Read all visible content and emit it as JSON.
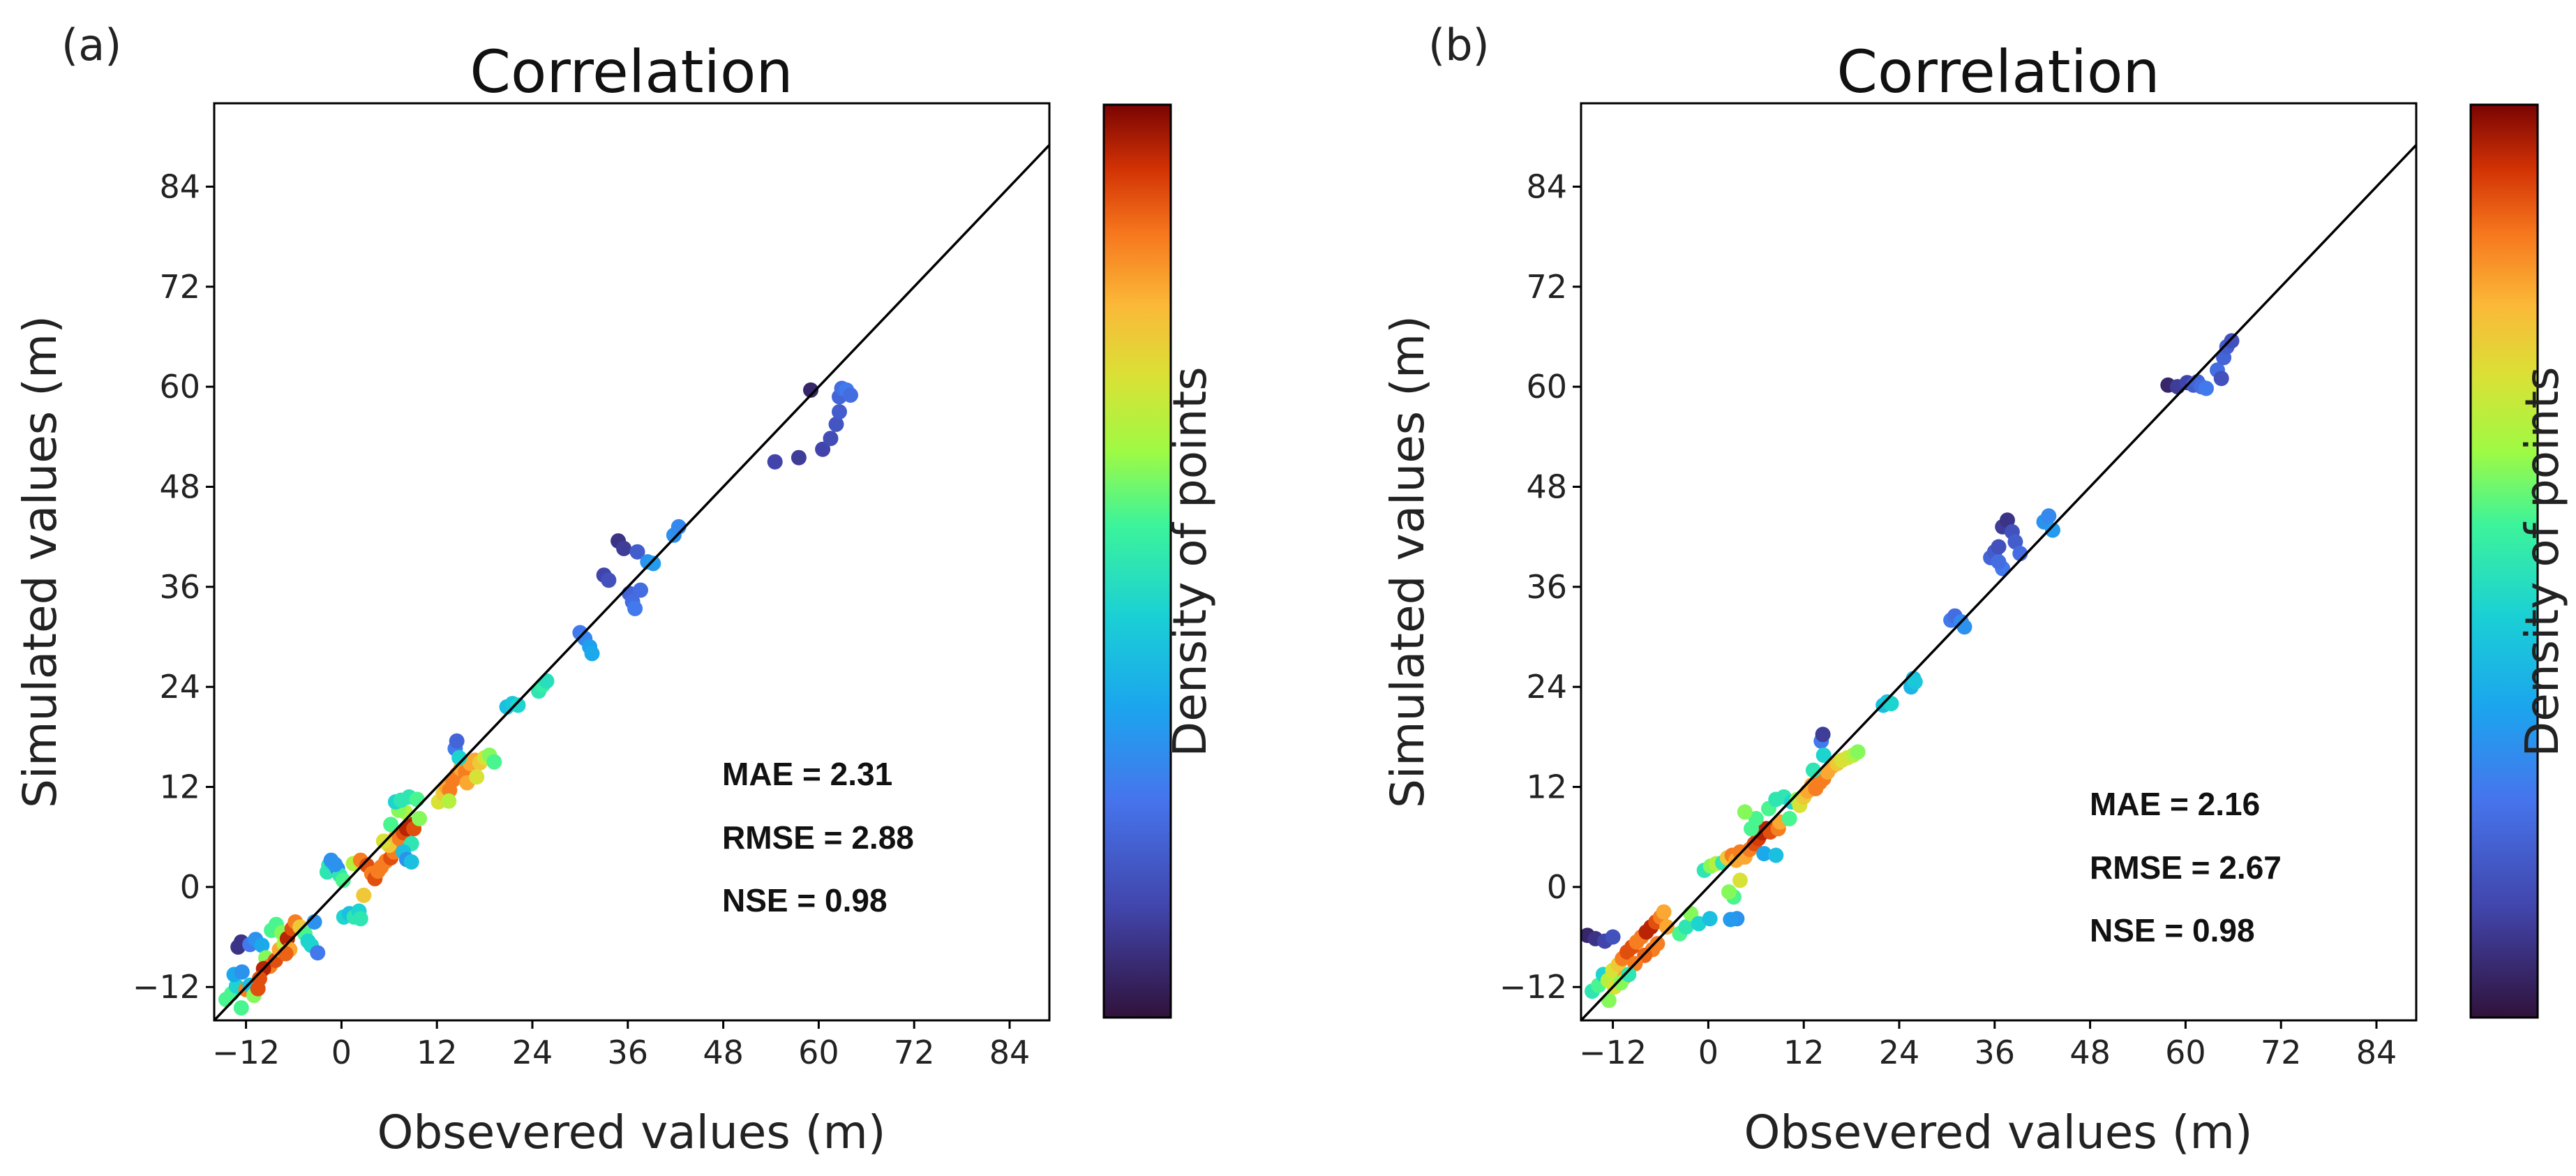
{
  "chart_data": [
    {
      "type": "scatter",
      "panel_label": "(a)",
      "title": "Correlation",
      "xlabel": "Obsevered values (m)",
      "ylabel": "Simulated values (m)",
      "xlim": [
        -16,
        89
      ],
      "ylim": [
        -16,
        94
      ],
      "xticks": [
        "−12",
        "0",
        "12",
        "24",
        "36",
        "48",
        "60",
        "72",
        "84"
      ],
      "yticks": [
        "−12",
        "0",
        "12",
        "24",
        "36",
        "48",
        "60",
        "72",
        "84"
      ],
      "colorbar_label": "Density of points",
      "stats": [
        "MAE = 2.31",
        "RMSE = 2.88",
        "NSE = 0.98"
      ],
      "reference_line": [
        [
          -16,
          -16
        ],
        [
          89,
          89
        ]
      ],
      "points": [
        [
          -14.5,
          -13.5,
          0.55
        ],
        [
          -13.8,
          -12.8,
          0.55
        ],
        [
          -13.2,
          -11.9,
          0.45
        ],
        [
          -12.6,
          -14.5,
          0.55
        ],
        [
          -12.0,
          -12.3,
          0.85
        ],
        [
          -13.5,
          -10.5,
          0.35
        ],
        [
          -12.5,
          -10.2,
          0.3
        ],
        [
          -11.5,
          -11.8,
          0.4
        ],
        [
          -11.0,
          -13.0,
          0.6
        ],
        [
          -10.5,
          -12.2,
          0.9
        ],
        [
          -13.0,
          -7.2,
          0.08
        ],
        [
          -12.6,
          -6.6,
          0.08
        ],
        [
          -11.5,
          -6.9,
          0.25
        ],
        [
          -10.8,
          -6.3,
          0.3
        ],
        [
          -10.0,
          -7.0,
          0.35
        ],
        [
          -9.5,
          -8.5,
          0.6
        ],
        [
          -9.0,
          -9.5,
          0.85
        ],
        [
          -8.3,
          -8.8,
          0.9
        ],
        [
          -7.8,
          -7.5,
          0.8
        ],
        [
          -7.2,
          -6.8,
          0.65
        ],
        [
          -8.8,
          -5.2,
          0.55
        ],
        [
          -8.2,
          -4.5,
          0.55
        ],
        [
          -7.5,
          -5.5,
          0.6
        ],
        [
          -6.8,
          -6.2,
          0.95
        ],
        [
          -6.2,
          -5.0,
          0.9
        ],
        [
          -5.8,
          -4.2,
          0.85
        ],
        [
          -5.2,
          -4.8,
          0.75
        ],
        [
          -4.6,
          -5.6,
          0.55
        ],
        [
          -4.2,
          -6.5,
          0.45
        ],
        [
          -3.8,
          -7.0,
          0.45
        ],
        [
          -3.4,
          -4.2,
          0.3
        ],
        [
          -3.0,
          -7.9,
          0.25
        ],
        [
          -6.5,
          -7.5,
          0.8
        ],
        [
          -7.0,
          -8.0,
          0.88
        ],
        [
          -9.8,
          -9.8,
          0.95
        ],
        [
          -10.3,
          -11.0,
          0.9
        ],
        [
          -1.8,
          1.8,
          0.5
        ],
        [
          -1.6,
          2.6,
          0.5
        ],
        [
          -1.2,
          2.9,
          0.45
        ],
        [
          -0.5,
          2.2,
          0.28
        ],
        [
          -0.2,
          1.4,
          0.5
        ],
        [
          0.3,
          -3.6,
          0.45
        ],
        [
          1.0,
          -3.2,
          0.4
        ],
        [
          1.6,
          -3.6,
          0.5
        ],
        [
          2.2,
          -2.9,
          0.45
        ],
        [
          2.4,
          -3.8,
          0.5
        ],
        [
          -1.3,
          3.2,
          0.3
        ],
        [
          -0.8,
          2.7,
          0.3
        ],
        [
          0.2,
          0.8,
          0.55
        ],
        [
          2.8,
          -1.0,
          0.75
        ],
        [
          1.5,
          2.8,
          0.65
        ],
        [
          2.4,
          3.2,
          0.85
        ],
        [
          3.2,
          2.6,
          0.9
        ],
        [
          3.8,
          1.6,
          0.85
        ],
        [
          4.2,
          1.0,
          0.9
        ],
        [
          4.6,
          1.9,
          0.85
        ],
        [
          5.0,
          2.4,
          0.85
        ],
        [
          5.6,
          3.1,
          0.85
        ],
        [
          6.2,
          3.5,
          0.9
        ],
        [
          6.6,
          4.2,
          0.85
        ],
        [
          6.0,
          5.0,
          0.75
        ],
        [
          5.3,
          5.5,
          0.7
        ],
        [
          6.8,
          6.0,
          0.75
        ],
        [
          7.3,
          5.8,
          0.85
        ],
        [
          7.8,
          6.5,
          0.9
        ],
        [
          8.2,
          7.0,
          0.95
        ],
        [
          8.6,
          7.5,
          0.95
        ],
        [
          9.1,
          7.0,
          0.9
        ],
        [
          8.0,
          9.0,
          0.65
        ],
        [
          7.2,
          9.2,
          0.6
        ],
        [
          6.2,
          7.5,
          0.55
        ],
        [
          6.8,
          10.2,
          0.45
        ],
        [
          7.5,
          10.4,
          0.5
        ],
        [
          8.5,
          10.8,
          0.5
        ],
        [
          9.5,
          10.5,
          0.55
        ],
        [
          9.8,
          8.2,
          0.6
        ],
        [
          8.8,
          5.2,
          0.5
        ],
        [
          7.8,
          4.2,
          0.4
        ],
        [
          8.2,
          3.3,
          0.3
        ],
        [
          8.8,
          3.0,
          0.4
        ],
        [
          12.2,
          10.2,
          0.7
        ],
        [
          12.8,
          11.2,
          0.75
        ],
        [
          13.2,
          12.0,
          0.8
        ],
        [
          13.6,
          11.6,
          0.85
        ],
        [
          14.0,
          12.8,
          0.85
        ],
        [
          14.5,
          13.5,
          0.85
        ],
        [
          15.0,
          14.2,
          0.8
        ],
        [
          15.6,
          13.8,
          0.85
        ],
        [
          16.2,
          14.8,
          0.8
        ],
        [
          16.8,
          15.2,
          0.8
        ],
        [
          17.4,
          14.9,
          0.75
        ],
        [
          18.0,
          15.5,
          0.7
        ],
        [
          18.6,
          15.8,
          0.6
        ],
        [
          19.2,
          15.0,
          0.55
        ],
        [
          14.3,
          16.6,
          0.25
        ],
        [
          14.5,
          17.5,
          0.2
        ],
        [
          14.8,
          15.5,
          0.45
        ],
        [
          13.5,
          10.3,
          0.65
        ],
        [
          15.8,
          12.5,
          0.8
        ],
        [
          17.0,
          13.2,
          0.7
        ],
        [
          20.8,
          21.6,
          0.4
        ],
        [
          21.5,
          22.0,
          0.42
        ],
        [
          22.2,
          21.8,
          0.45
        ],
        [
          24.8,
          23.5,
          0.5
        ],
        [
          25.3,
          24.2,
          0.52
        ],
        [
          25.8,
          24.7,
          0.48
        ],
        [
          30.0,
          30.5,
          0.25
        ],
        [
          30.6,
          29.8,
          0.28
        ],
        [
          31.2,
          28.8,
          0.33
        ],
        [
          31.5,
          28.0,
          0.35
        ],
        [
          33.0,
          37.4,
          0.12
        ],
        [
          33.6,
          36.8,
          0.15
        ],
        [
          34.8,
          41.5,
          0.08
        ],
        [
          35.5,
          40.6,
          0.1
        ],
        [
          36.2,
          35.2,
          0.2
        ],
        [
          36.6,
          34.2,
          0.22
        ],
        [
          36.9,
          33.4,
          0.25
        ],
        [
          37.6,
          35.6,
          0.22
        ],
        [
          37.2,
          40.2,
          0.18
        ],
        [
          38.5,
          39.0,
          0.3
        ],
        [
          39.2,
          38.8,
          0.32
        ],
        [
          41.8,
          42.2,
          0.3
        ],
        [
          42.4,
          43.2,
          0.28
        ],
        [
          54.5,
          51.0,
          0.12
        ],
        [
          57.5,
          51.5,
          0.1
        ],
        [
          59.0,
          59.6,
          0.05
        ],
        [
          60.5,
          52.5,
          0.12
        ],
        [
          61.5,
          53.8,
          0.14
        ],
        [
          62.2,
          55.5,
          0.16
        ],
        [
          62.6,
          57.0,
          0.18
        ],
        [
          62.6,
          58.8,
          0.2
        ],
        [
          62.9,
          59.8,
          0.22
        ],
        [
          63.5,
          59.6,
          0.25
        ],
        [
          64.0,
          59.0,
          0.22
        ]
      ]
    },
    {
      "type": "scatter",
      "panel_label": "(b)",
      "title": "Correlation",
      "xlabel": "Obsevered values (m)",
      "ylabel": "Simulated values (m)",
      "xlim": [
        -16,
        89
      ],
      "ylim": [
        -16,
        94
      ],
      "xticks": [
        "−12",
        "0",
        "12",
        "24",
        "36",
        "48",
        "60",
        "72",
        "84"
      ],
      "yticks": [
        "−12",
        "0",
        "12",
        "24",
        "36",
        "48",
        "60",
        "72",
        "84"
      ],
      "colorbar_label": "Density of points",
      "stats": [
        "MAE = 2.16",
        "RMSE = 2.67",
        "NSE = 0.98"
      ],
      "reference_line": [
        [
          -16,
          -16
        ],
        [
          89,
          89
        ]
      ],
      "points": [
        [
          -15.2,
          -5.8,
          0.05
        ],
        [
          -14.2,
          -6.2,
          0.08
        ],
        [
          -13.0,
          -6.5,
          0.12
        ],
        [
          -12.0,
          -6.0,
          0.15
        ],
        [
          -14.6,
          -12.5,
          0.5
        ],
        [
          -13.8,
          -11.8,
          0.55
        ],
        [
          -13.2,
          -10.5,
          0.45
        ],
        [
          -12.6,
          -11.2,
          0.65
        ],
        [
          -12.0,
          -10.0,
          0.7
        ],
        [
          -11.3,
          -9.3,
          0.75
        ],
        [
          -10.8,
          -8.6,
          0.85
        ],
        [
          -10.2,
          -7.8,
          0.9
        ],
        [
          -9.6,
          -7.2,
          0.9
        ],
        [
          -9.0,
          -6.6,
          0.85
        ],
        [
          -8.4,
          -6.0,
          0.85
        ],
        [
          -7.8,
          -5.4,
          0.95
        ],
        [
          -7.2,
          -4.8,
          0.95
        ],
        [
          -6.6,
          -4.2,
          0.9
        ],
        [
          -6.0,
          -3.6,
          0.85
        ],
        [
          -5.6,
          -3.0,
          0.8
        ],
        [
          -5.2,
          -4.8,
          0.8
        ],
        [
          -6.4,
          -6.8,
          0.85
        ],
        [
          -7.0,
          -7.5,
          0.85
        ],
        [
          -8.0,
          -8.2,
          0.88
        ],
        [
          -9.2,
          -9.2,
          0.85
        ],
        [
          -10.5,
          -10.8,
          0.8
        ],
        [
          -11.8,
          -12.0,
          0.7
        ],
        [
          -12.5,
          -13.6,
          0.6
        ],
        [
          -11.0,
          -11.5,
          0.6
        ],
        [
          -10.0,
          -10.5,
          0.5
        ],
        [
          -3.6,
          -5.6,
          0.55
        ],
        [
          -2.8,
          -4.8,
          0.5
        ],
        [
          -2.2,
          -3.2,
          0.6
        ],
        [
          -1.2,
          -4.4,
          0.45
        ],
        [
          0.2,
          -3.8,
          0.4
        ],
        [
          -0.5,
          2.0,
          0.5
        ],
        [
          0.3,
          2.5,
          0.6
        ],
        [
          1.0,
          2.8,
          0.65
        ],
        [
          1.8,
          2.9,
          0.5
        ],
        [
          2.4,
          3.5,
          0.75
        ],
        [
          3.0,
          3.8,
          0.85
        ],
        [
          3.5,
          3.2,
          0.8
        ],
        [
          4.0,
          4.2,
          0.85
        ],
        [
          4.6,
          3.6,
          0.8
        ],
        [
          5.2,
          4.5,
          0.85
        ],
        [
          5.8,
          5.2,
          0.9
        ],
        [
          6.3,
          5.8,
          0.92
        ],
        [
          6.8,
          6.5,
          0.95
        ],
        [
          7.3,
          7.0,
          0.95
        ],
        [
          7.8,
          6.6,
          0.9
        ],
        [
          8.3,
          7.2,
          0.9
        ],
        [
          8.8,
          7.0,
          0.85
        ],
        [
          9.0,
          7.8,
          0.8
        ],
        [
          5.4,
          7.0,
          0.55
        ],
        [
          6.0,
          8.2,
          0.55
        ],
        [
          4.6,
          9.0,
          0.6
        ],
        [
          7.6,
          9.4,
          0.55
        ],
        [
          8.5,
          10.5,
          0.5
        ],
        [
          9.5,
          10.8,
          0.5
        ],
        [
          3.2,
          -1.2,
          0.55
        ],
        [
          2.6,
          -0.6,
          0.6
        ],
        [
          4.0,
          0.8,
          0.7
        ],
        [
          3.6,
          -3.8,
          0.3
        ],
        [
          2.8,
          -3.9,
          0.32
        ],
        [
          7.0,
          4.0,
          0.35
        ],
        [
          8.5,
          3.8,
          0.4
        ],
        [
          10.2,
          8.2,
          0.55
        ],
        [
          10.5,
          10.2,
          0.45
        ],
        [
          11.2,
          10.5,
          0.6
        ],
        [
          11.5,
          9.8,
          0.7
        ],
        [
          12.0,
          10.8,
          0.75
        ],
        [
          12.5,
          11.5,
          0.8
        ],
        [
          13.0,
          12.2,
          0.8
        ],
        [
          13.5,
          11.8,
          0.85
        ],
        [
          14.0,
          12.5,
          0.85
        ],
        [
          14.5,
          13.0,
          0.85
        ],
        [
          15.0,
          13.8,
          0.8
        ],
        [
          15.6,
          14.5,
          0.8
        ],
        [
          16.2,
          14.8,
          0.75
        ],
        [
          16.8,
          15.2,
          0.7
        ],
        [
          17.5,
          15.5,
          0.7
        ],
        [
          18.2,
          15.8,
          0.65
        ],
        [
          18.8,
          16.2,
          0.6
        ],
        [
          14.2,
          17.5,
          0.25
        ],
        [
          14.4,
          18.3,
          0.1
        ],
        [
          14.5,
          15.8,
          0.45
        ],
        [
          13.2,
          14.0,
          0.5
        ],
        [
          22.0,
          21.8,
          0.4
        ],
        [
          22.5,
          22.2,
          0.42
        ],
        [
          23.0,
          22.0,
          0.45
        ],
        [
          25.5,
          24.0,
          0.38
        ],
        [
          25.8,
          25.0,
          0.4
        ],
        [
          26.0,
          24.6,
          0.42
        ],
        [
          30.5,
          32.0,
          0.25
        ],
        [
          31.0,
          32.5,
          0.22
        ],
        [
          31.8,
          31.8,
          0.28
        ],
        [
          32.2,
          31.2,
          0.3
        ],
        [
          35.5,
          39.5,
          0.2
        ],
        [
          36.0,
          40.2,
          0.18
        ],
        [
          36.5,
          40.8,
          0.15
        ],
        [
          37.0,
          43.2,
          0.1
        ],
        [
          37.6,
          44.0,
          0.08
        ],
        [
          38.2,
          42.6,
          0.15
        ],
        [
          38.6,
          41.4,
          0.18
        ],
        [
          39.2,
          40.0,
          0.22
        ],
        [
          37.0,
          38.2,
          0.25
        ],
        [
          36.5,
          39.0,
          0.22
        ],
        [
          42.2,
          43.8,
          0.3
        ],
        [
          42.8,
          44.5,
          0.28
        ],
        [
          43.3,
          42.8,
          0.32
        ],
        [
          57.8,
          60.2,
          0.05
        ],
        [
          59.0,
          60.0,
          0.1
        ],
        [
          60.2,
          60.5,
          0.12
        ],
        [
          61.0,
          60.2,
          0.18
        ],
        [
          61.5,
          60.6,
          0.2
        ],
        [
          62.0,
          60.0,
          0.22
        ],
        [
          62.6,
          59.8,
          0.25
        ],
        [
          64.0,
          62.0,
          0.22
        ],
        [
          64.5,
          61.0,
          0.15
        ],
        [
          64.8,
          63.5,
          0.2
        ],
        [
          65.2,
          64.8,
          0.18
        ],
        [
          65.8,
          65.5,
          0.15
        ]
      ]
    }
  ]
}
